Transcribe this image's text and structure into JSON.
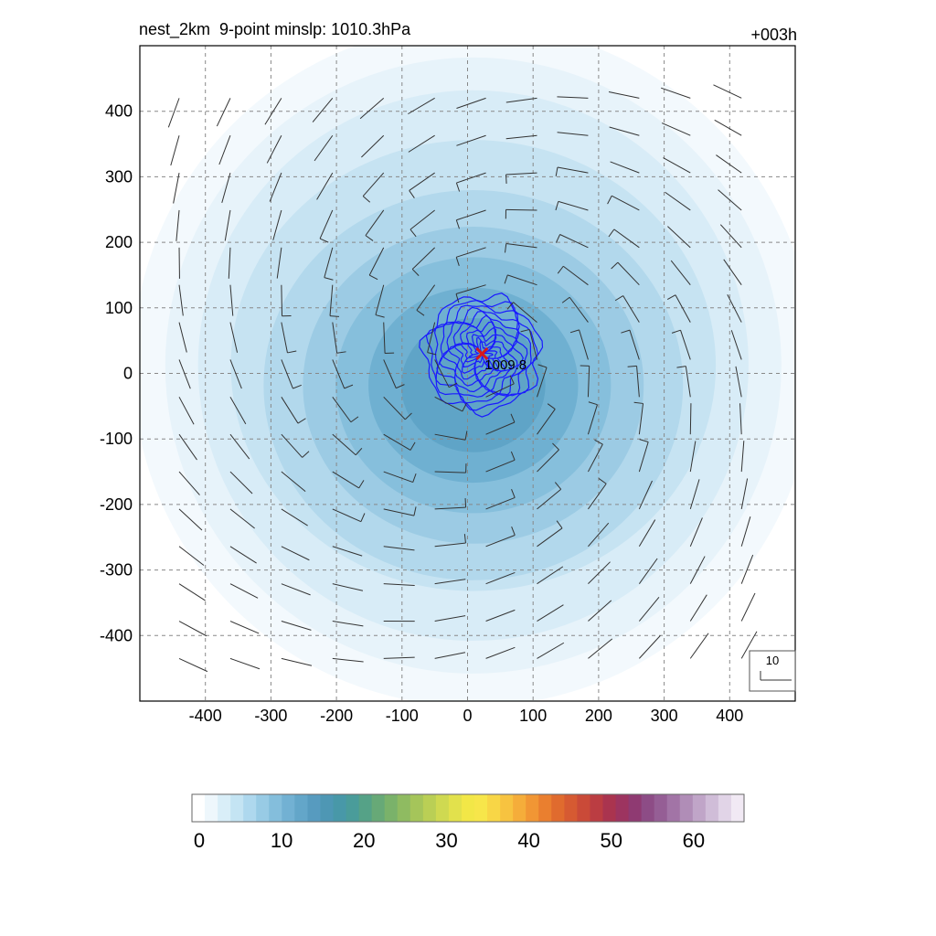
{
  "header": {
    "title": "nest_2km  9-point minslp: 1010.3hPa",
    "forecast_hour": "+003h"
  },
  "chart_data": {
    "type": "heatmap",
    "field": "wind speed shading with wind barbs and minimum sea-level pressure contours",
    "x_ticks": [
      -400,
      -300,
      -200,
      -100,
      0,
      100,
      200,
      300,
      400
    ],
    "y_ticks": [
      400,
      300,
      200,
      100,
      0,
      -100,
      -200,
      -300,
      -400
    ],
    "xlim": [
      -500,
      500
    ],
    "ylim": [
      -500,
      500
    ],
    "grid": true,
    "center": {
      "x": 22,
      "y": 30,
      "label": "1009.8",
      "marker": "x",
      "marker_color": "#d7191c"
    },
    "barb_reference": "10",
    "colorbar": {
      "ticks": [
        0,
        10,
        20,
        30,
        40,
        50,
        60
      ],
      "range": [
        0,
        67
      ],
      "colors": [
        "#ffffff",
        "#eef7fc",
        "#d9eef8",
        "#c4e4f3",
        "#aed8ee",
        "#98cbe5",
        "#84bedc",
        "#72b1d3",
        "#63a6c9",
        "#579bbf",
        "#4e97b4",
        "#4898a8",
        "#4a9c9a",
        "#55a287",
        "#67a977",
        "#7ab26a",
        "#8fbb61",
        "#a5c55a",
        "#bacf55",
        "#cfd951",
        "#e2e14c",
        "#f2e747",
        "#f7e64a",
        "#f8d646",
        "#f7c340",
        "#f5ad3a",
        "#f19634",
        "#ea7f2f",
        "#e06b2e",
        "#d65a32",
        "#ca4a38",
        "#bb3d42",
        "#aa344f",
        "#9d3460",
        "#8f3a72",
        "#8d4c86",
        "#955e95",
        "#a274a6",
        "#b08db7",
        "#c0a5c8",
        "#d0bdd8",
        "#e1d4e7",
        "#f1e9f4"
      ]
    }
  },
  "colors": {
    "center_marker": "#d7191c",
    "slp_contour": "#1a1aff",
    "barb": "#333333",
    "grid": "#888888"
  }
}
